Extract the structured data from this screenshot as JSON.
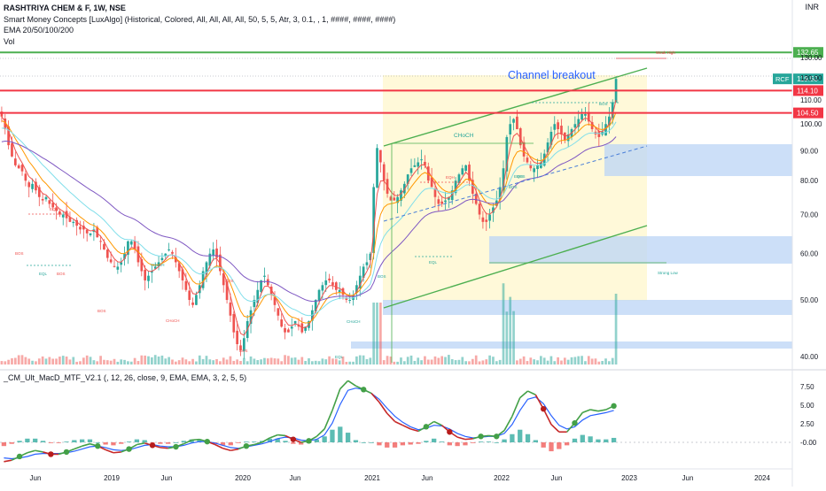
{
  "header": {
    "symbol_line": "RASHTRIYA CHEM & F, 1W, NSE",
    "indicator_line": "Smart Money Concepts [LuxAlgo] (Historical, Colored, All, All, All, All, 50, 5, 5, Atr, 3, 0.1, , 1, ####, ####, ####)",
    "ema_line": "EMA 20/50/100/200",
    "vol_line": "Vol",
    "currency": "INR"
  },
  "lower_pane": {
    "title": "_CM_Ult_MacD_MTF_V2.1 (, 12, 26, close, 9, EMA, EMA, 3, 2, 5, 5)"
  },
  "annotations": {
    "channel_breakout": "Channel breakout",
    "choch_main": "CHoCH",
    "choch_left": "CHoCH",
    "choch_small": "CHoCH",
    "choch_mid": "CHoCH",
    "strong_low": "Strong Low",
    "weak_high": "Weak High",
    "eqh": "EQH",
    "eql": "EQL",
    "bos": "BOS",
    "eqh_left": "EQH",
    "eql_left": "EQL",
    "eqh_mid": "EQH",
    "eql_mid": "EQL",
    "bos_list": [
      "BOS",
      "BOS",
      "BOS",
      "BOS",
      "BOS",
      "BOS",
      "BOS",
      "BOS"
    ]
  },
  "colors": {
    "up": "#26a69a",
    "down": "#ef5350",
    "resistance": "#f23645",
    "channel": "#4caf50",
    "breakout_text": "#2962ff",
    "zone_blue": "#bbd4f5",
    "zone_yellow": "#fff9d9",
    "ema20": "#ef5350",
    "ema50": "#ff9800",
    "ema100": "#80deea",
    "ema200": "#7e57c2"
  },
  "chart_data": [
    {
      "type": "line",
      "pane": "price",
      "y_scale": "log",
      "ylim": [
        38,
        135
      ],
      "y_ticks": [
        40,
        50,
        60,
        70,
        80,
        90,
        100,
        110,
        120,
        130
      ],
      "y_tick_labels": [
        "40.00",
        "50.00",
        "60.00",
        "70.00",
        "80.00",
        "90.00",
        "100.00",
        "110.00",
        "120.00",
        "130.00"
      ],
      "x_tick_labels": [
        "Jun",
        "2019",
        "Jun",
        "2020",
        "Jun",
        "2021",
        "Jun",
        "2022",
        "Jun",
        "2023",
        "Jun",
        "2024"
      ],
      "horizontal_levels": [
        {
          "label": "132.65",
          "value": 132.65,
          "color": "#4caf50"
        },
        {
          "label": "114.10",
          "value": 114.1,
          "color": "#f23645"
        },
        {
          "label": "104.50",
          "value": 104.5,
          "color": "#f23645"
        }
      ],
      "last_price": {
        "ticker": "RCF",
        "value": "119.50"
      },
      "close_series_approx": [
        103,
        98,
        92,
        88,
        85,
        84,
        83,
        80,
        78,
        79,
        77,
        75,
        74,
        75,
        73,
        72,
        71,
        70,
        70,
        69,
        68,
        68,
        67,
        66,
        66,
        65,
        65,
        66,
        64,
        63,
        61,
        59,
        58,
        57,
        57,
        58,
        60,
        63,
        63,
        61,
        58,
        56,
        54,
        55,
        56,
        57,
        58,
        59,
        60,
        61,
        60,
        58,
        56,
        54,
        52,
        50,
        49,
        51,
        53,
        56,
        58,
        60,
        61,
        59,
        56,
        53,
        50,
        47,
        44,
        42,
        41,
        43,
        46,
        48,
        50,
        52,
        54,
        55,
        53,
        51,
        49,
        47,
        45,
        44,
        44,
        45,
        46,
        45,
        44,
        45,
        46,
        48,
        50,
        52,
        53,
        54,
        54,
        53,
        52,
        52,
        51,
        50,
        50,
        51,
        53,
        55,
        57,
        58,
        60,
        78,
        91,
        86,
        80,
        76,
        74,
        74,
        75,
        77,
        79,
        82,
        84,
        85,
        86,
        87,
        85,
        80,
        78,
        75,
        73,
        73,
        74,
        75,
        77,
        80,
        82,
        84,
        85,
        80,
        76,
        73,
        70,
        68,
        68,
        70,
        72,
        74,
        78,
        84,
        95,
        100,
        102,
        98,
        92,
        88,
        86,
        84,
        84,
        85,
        86,
        89,
        93,
        97,
        100,
        98,
        96,
        94,
        96,
        98,
        100,
        102,
        104,
        104,
        101,
        98,
        96,
        95,
        97,
        100,
        103,
        109,
        119.5
      ]
    },
    {
      "type": "line",
      "pane": "macd",
      "ylim": [
        -2.2,
        8.8
      ],
      "y_ticks": [
        -0.0,
        2.5,
        5.0,
        7.5
      ],
      "y_tick_labels": [
        "-0.00",
        "2.50",
        "5.00",
        "7.50"
      ],
      "series": [
        {
          "name": "",
          "values": [
            -2.6,
            -2.4,
            -1.9,
            -1.4,
            -1.1,
            -1.3,
            -1.6,
            -1.6,
            -1.3,
            -0.9,
            -0.5,
            -0.2,
            -0.5,
            -1.0,
            -1.4,
            -1.3,
            -0.9,
            -0.3,
            -0.1,
            -0.4,
            -0.7,
            -0.8,
            -0.6,
            -0.2,
            0.3,
            0.4,
            0.1,
            -0.3,
            -0.8,
            -1.1,
            -0.9,
            -0.5,
            -0.3,
            0.0,
            0.6,
            1.0,
            0.9,
            0.4,
            0.0,
            0.2,
            0.8,
            1.8,
            4.3,
            7.2,
            8.3,
            7.6,
            7.1,
            6.6,
            5.4,
            3.9,
            2.8,
            2.3,
            1.8,
            1.5,
            2.1,
            2.8,
            2.3,
            1.4,
            0.7,
            0.4,
            0.5,
            0.8,
            0.9,
            0.8,
            1.6,
            3.5,
            6.0,
            6.9,
            6.4,
            4.5,
            2.4,
            1.4,
            1.4,
            2.6,
            4.0,
            4.4,
            4.2,
            4.4,
            4.9
          ]
        },
        {
          "name": "",
          "values": [
            -2.1,
            -2.2,
            -2.1,
            -1.9,
            -1.6,
            -1.5,
            -1.5,
            -1.5,
            -1.4,
            -1.2,
            -0.9,
            -0.6,
            -0.5,
            -0.7,
            -1.0,
            -1.1,
            -1.0,
            -0.7,
            -0.4,
            -0.3,
            -0.5,
            -0.6,
            -0.6,
            -0.4,
            -0.1,
            0.1,
            0.1,
            -0.1,
            -0.4,
            -0.7,
            -0.8,
            -0.6,
            -0.4,
            -0.2,
            0.1,
            0.5,
            0.7,
            0.6,
            0.3,
            0.2,
            0.4,
            1.0,
            2.6,
            5.1,
            7.0,
            7.3,
            7.1,
            6.6,
            5.8,
            4.6,
            3.5,
            2.7,
            2.1,
            1.7,
            1.9,
            2.3,
            2.2,
            1.8,
            1.2,
            0.8,
            0.6,
            0.7,
            0.8,
            0.8,
            1.2,
            2.4,
            4.3,
            5.8,
            6.1,
            5.2,
            3.6,
            2.3,
            1.8,
            2.1,
            3.0,
            3.6,
            3.8,
            4.0,
            4.3
          ]
        }
      ],
      "histogram_approx": [
        -0.5,
        -0.2,
        0.2,
        0.5,
        0.5,
        0.2,
        -0.1,
        -0.1,
        0.1,
        0.3,
        0.4,
        0.4,
        0.0,
        -0.3,
        -0.4,
        -0.2,
        0.1,
        0.4,
        0.3,
        -0.1,
        -0.2,
        -0.2,
        0.0,
        0.2,
        0.4,
        0.3,
        0.0,
        -0.2,
        -0.4,
        -0.4,
        -0.1,
        0.1,
        0.1,
        0.2,
        0.5,
        0.5,
        0.2,
        -0.2,
        -0.3,
        0.0,
        0.4,
        0.8,
        1.7,
        2.1,
        1.3,
        0.3,
        0.0,
        0.0,
        -0.4,
        -0.7,
        -0.7,
        -0.4,
        -0.3,
        -0.2,
        0.2,
        0.5,
        0.1,
        -0.4,
        -0.5,
        -0.4,
        -0.1,
        0.1,
        0.1,
        0.0,
        0.4,
        1.1,
        1.7,
        1.1,
        0.3,
        -0.7,
        -1.2,
        -0.9,
        -0.4,
        0.5,
        1.0,
        0.8,
        0.4,
        0.4,
        0.6
      ]
    }
  ]
}
